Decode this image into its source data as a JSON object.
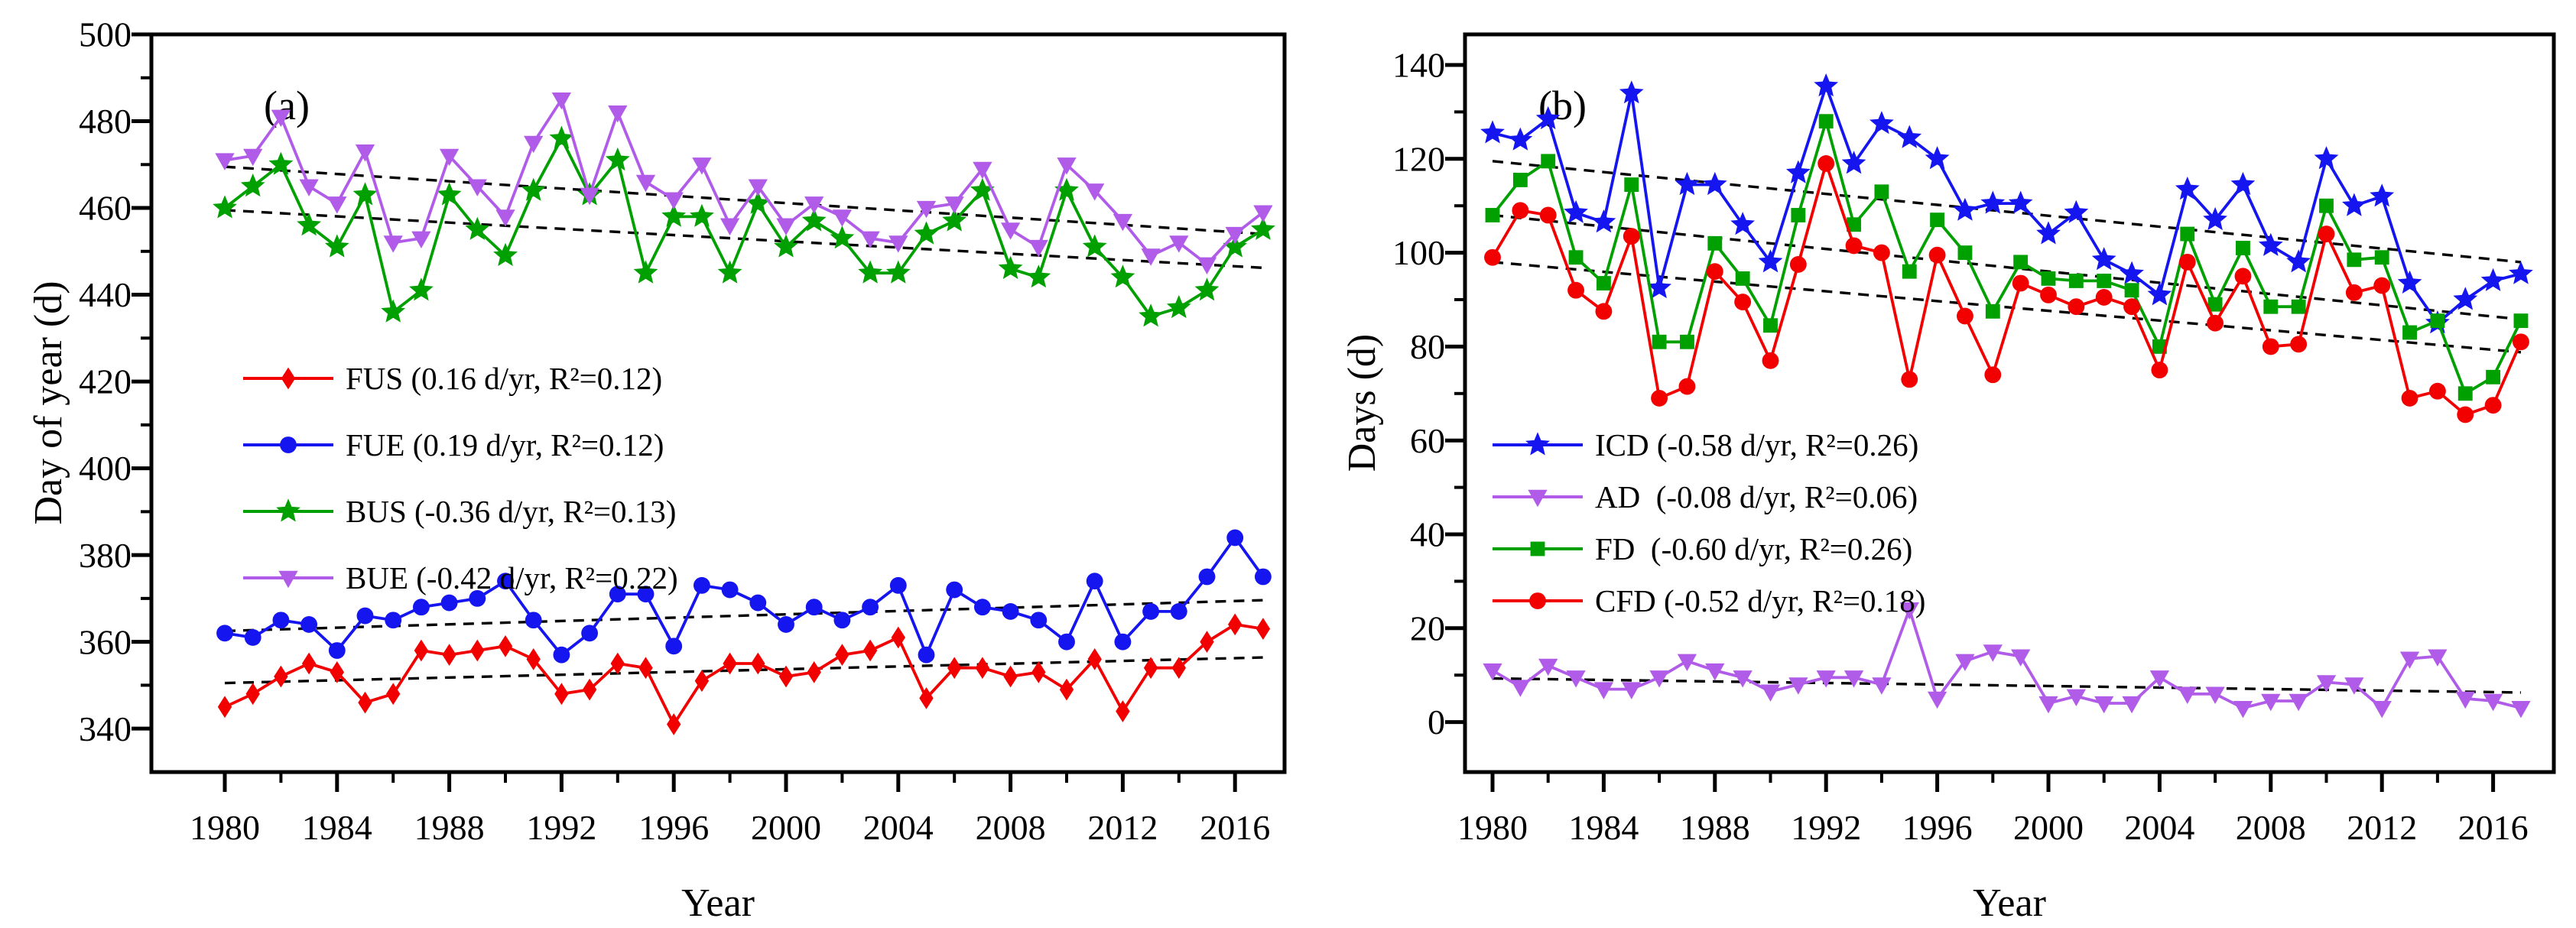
{
  "figure_type": "dual-panel time-series line chart",
  "chart_data": [
    {
      "id": "a",
      "type": "line",
      "panel_label": "(a)",
      "xlabel": "Year",
      "ylabel": "Day of year (d)",
      "x_years": [
        1980,
        1981,
        1982,
        1983,
        1984,
        1985,
        1986,
        1987,
        1988,
        1989,
        1990,
        1991,
        1992,
        1993,
        1994,
        1995,
        1996,
        1997,
        1998,
        1999,
        2000,
        2001,
        2002,
        2003,
        2004,
        2005,
        2006,
        2007,
        2008,
        2009,
        2010,
        2011,
        2012,
        2013,
        2014,
        2015,
        2016,
        2017
      ],
      "ylim": [
        330,
        500
      ],
      "y_major_ticks": [
        340,
        360,
        380,
        400,
        420,
        440,
        460,
        480,
        500
      ],
      "y_minor_ticks": [
        350,
        370,
        390,
        410,
        430,
        450,
        470,
        490
      ],
      "x_major_ticks": [
        1980,
        1984,
        1988,
        1992,
        1996,
        2000,
        2004,
        2008,
        2012,
        2016
      ],
      "x_minor_ticks": [
        1982,
        1986,
        1990,
        1994,
        1998,
        2002,
        2006,
        2010,
        2014
      ],
      "grid": "off",
      "legend_position": "center-left",
      "series": [
        {
          "name": "FUS",
          "legend_label": "FUS (0.16 d/yr, R²=0.12)",
          "trend_rate": "0.16 d/yr",
          "r_squared": "0.12",
          "color": "#f20000",
          "marker": "diamond",
          "values": [
            345,
            348,
            352,
            355,
            353,
            346,
            348,
            358,
            357,
            358,
            359,
            356,
            348,
            349,
            355,
            354,
            341,
            351,
            355,
            355,
            352,
            353,
            357,
            358,
            361,
            347,
            354,
            354,
            352,
            353,
            349,
            356,
            344,
            354,
            354,
            360,
            364,
            363
          ],
          "trend_line": [
            350.5,
            356.4
          ]
        },
        {
          "name": "FUE",
          "legend_label": "FUE (0.19 d/yr, R²=0.12)",
          "trend_rate": "0.19 d/yr",
          "r_squared": "0.12",
          "color": "#1515f0",
          "marker": "circle",
          "values": [
            362,
            361,
            365,
            364,
            358,
            366,
            365,
            368,
            369,
            370,
            374,
            365,
            357,
            362,
            371,
            371,
            359,
            373,
            372,
            369,
            364,
            368,
            365,
            368,
            373,
            357,
            372,
            368,
            367,
            365,
            360,
            374,
            360,
            367,
            367,
            375,
            384,
            375
          ],
          "trend_line": [
            362.5,
            369.6
          ]
        },
        {
          "name": "BUS",
          "legend_label": "BUS (-0.36 d/yr, R²=0.13)",
          "trend_rate": "-0.36 d/yr",
          "r_squared": "0.13",
          "color": "#00a000",
          "marker": "star",
          "values": [
            460,
            465,
            470,
            456,
            451,
            463,
            436,
            441,
            463,
            455,
            449,
            464,
            476,
            463,
            471,
            445,
            458,
            458,
            445,
            461,
            451,
            457,
            453,
            445,
            445,
            454,
            457,
            464,
            446,
            444,
            464,
            451,
            444,
            435,
            437,
            441,
            451,
            455
          ],
          "trend_line": [
            459.5,
            446.2
          ]
        },
        {
          "name": "BUE",
          "legend_label": "BUE (-0.42 d/yr, R²=0.22)",
          "trend_rate": "-0.42 d/yr",
          "r_squared": "0.22",
          "color": "#b05ce8",
          "marker": "triangle-down",
          "values": [
            471,
            472,
            481,
            465,
            461,
            473,
            452,
            453,
            472,
            465,
            458,
            475,
            485,
            463,
            482,
            466,
            462,
            470,
            456,
            465,
            456,
            461,
            458,
            453,
            452,
            460,
            461,
            469,
            455,
            451,
            470,
            464,
            457,
            449,
            452,
            447,
            454,
            459
          ],
          "trend_line": [
            469.5,
            454.0
          ]
        }
      ]
    },
    {
      "id": "b",
      "type": "line",
      "panel_label": "(b)",
      "xlabel": "Year",
      "ylabel": "Days (d)",
      "x_years": [
        1980,
        1981,
        1982,
        1983,
        1984,
        1985,
        1986,
        1987,
        1988,
        1989,
        1990,
        1991,
        1992,
        1993,
        1994,
        1995,
        1996,
        1997,
        1998,
        1999,
        2000,
        2001,
        2002,
        2003,
        2004,
        2005,
        2006,
        2007,
        2008,
        2009,
        2010,
        2011,
        2012,
        2013,
        2014,
        2015,
        2016,
        2017
      ],
      "ylim": [
        -5,
        145
      ],
      "y_major_ticks": [
        0,
        20,
        40,
        60,
        80,
        100,
        120,
        140
      ],
      "y_minor_ticks": [
        10,
        30,
        50,
        70,
        90,
        110,
        130
      ],
      "x_major_ticks": [
        1980,
        1984,
        1988,
        1992,
        1996,
        2000,
        2004,
        2008,
        2012,
        2016
      ],
      "x_minor_ticks": [
        1982,
        1986,
        1990,
        1994,
        1998,
        2002,
        2006,
        2010,
        2014
      ],
      "grid": "off",
      "legend_position": "center-left",
      "series": [
        {
          "name": "ICD",
          "legend_label": "ICD (-0.58 d/yr, R²=0.26)",
          "trend_rate": "-0.58 d/yr",
          "r_squared": "0.26",
          "color": "#1515f0",
          "marker": "star",
          "values": [
            125.5,
            124,
            128.5,
            108.5,
            106.5,
            134,
            92.5,
            114.5,
            114.5,
            106,
            98,
            117,
            135.5,
            119,
            127.5,
            124.5,
            120,
            109,
            110.5,
            110.5,
            104,
            108.5,
            98.5,
            95.5,
            91,
            113.5,
            107,
            114.5,
            101.5,
            98,
            120,
            110,
            112,
            93.5,
            85,
            90,
            94,
            95.5
          ],
          "trend_line": [
            119.5,
            98.0
          ]
        },
        {
          "name": "AD",
          "legend_label": "AD  (-0.08 d/yr, R²=0.06)",
          "trend_rate": "-0.08 d/yr",
          "r_squared": "0.06",
          "color": "#b05ce8",
          "marker": "triangle-down",
          "values": [
            11,
            7.5,
            12,
            9.5,
            7,
            7,
            9.5,
            13,
            11,
            9.5,
            6.5,
            8,
            9.5,
            9.5,
            8,
            24,
            5,
            13,
            15,
            14,
            4,
            5.5,
            4,
            4,
            9.5,
            6,
            6,
            3,
            4.5,
            4.5,
            8.5,
            8,
            3,
            13.5,
            14,
            5,
            4.5,
            3
          ],
          "trend_line": [
            9.3,
            6.3
          ]
        },
        {
          "name": "FD",
          "legend_label": "FD  (-0.60 d/yr, R²=0.26)",
          "trend_rate": "-0.60 d/yr",
          "r_squared": "0.26",
          "color": "#00a000",
          "marker": "square",
          "values": [
            108,
            115.5,
            119.5,
            99,
            93.5,
            114.5,
            81,
            81,
            102,
            94.5,
            84.5,
            108,
            128,
            106,
            113,
            96,
            107,
            100,
            87.5,
            98,
            94.5,
            94,
            94,
            92,
            80,
            104,
            89,
            101,
            88.5,
            88.5,
            110,
            98.5,
            99,
            83,
            85.5,
            70,
            73.5,
            85.5
          ],
          "trend_line": [
            108.0,
            85.8
          ]
        },
        {
          "name": "CFD",
          "legend_label": "CFD (-0.52 d/yr, R²=0.18)",
          "trend_rate": "-0.52 d/yr",
          "r_squared": "0.18",
          "color": "#f20000",
          "marker": "circle",
          "values": [
            99,
            109,
            108,
            92,
            87.5,
            103.5,
            69,
            71.5,
            96,
            89.5,
            77,
            97.5,
            119,
            101.5,
            100,
            73,
            99.5,
            86.5,
            74,
            93.5,
            91,
            88.5,
            90.5,
            88.5,
            75,
            98,
            85,
            95,
            80,
            80.5,
            104,
            91.5,
            93,
            69,
            70.5,
            65.5,
            67.5,
            81
          ],
          "trend_line": [
            98.0,
            78.8
          ]
        }
      ]
    }
  ],
  "trend_line_style": "black dashed least-squares trend per series",
  "axis_color": "#000000",
  "background_color": "#ffffff"
}
